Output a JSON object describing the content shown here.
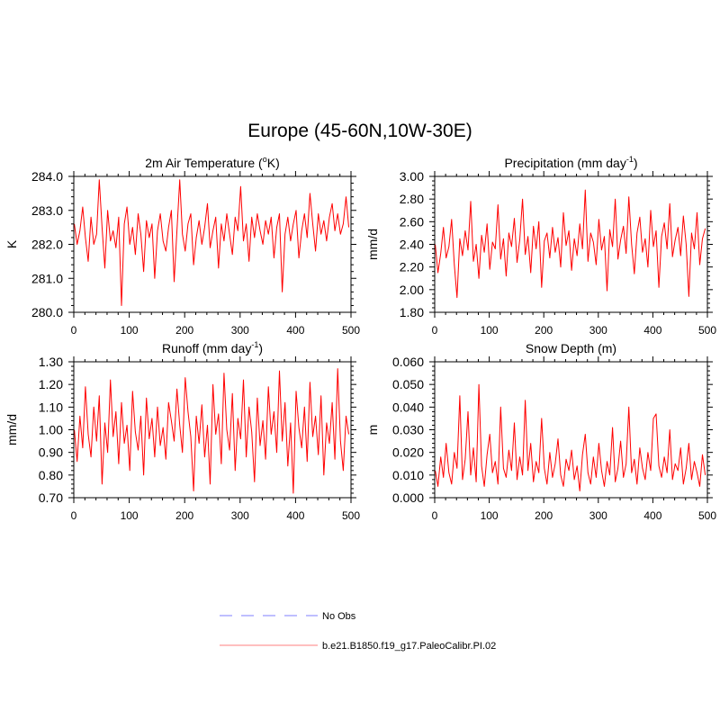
{
  "title": "Europe (45-60N,10W-30E)",
  "colors": {
    "series": "#ff0000",
    "obs": "#9999ff",
    "legend_model": "#ff9999"
  },
  "legend": {
    "items": [
      {
        "label": "No Obs",
        "style": "dashed",
        "color": "#9999ff"
      },
      {
        "label": "b.e21.B1850.f19_g17.PaleoCalibr.PI.02",
        "style": "solid",
        "color": "#ff9999"
      }
    ]
  },
  "chart_data": [
    {
      "type": "line",
      "title_main": "2m Air Temperature (",
      "title_sup": "o",
      "title_tail": "K)",
      "ylabel": "K",
      "xlim": [
        0,
        500
      ],
      "ylim": [
        280.0,
        284.0
      ],
      "x_ticks": [
        "0",
        "100",
        "200",
        "300",
        "400",
        "500"
      ],
      "y_ticks": [
        "280.0",
        "281.0",
        "282.0",
        "283.0",
        "284.0"
      ],
      "series": [
        {
          "x_start": 1,
          "x_step": 5,
          "values": [
            282.6,
            282.0,
            282.4,
            283.1,
            282.2,
            281.5,
            282.8,
            282.0,
            282.3,
            283.9,
            282.5,
            281.3,
            283.0,
            282.1,
            282.4,
            281.9,
            282.8,
            280.2,
            282.6,
            283.1,
            282.0,
            282.5,
            281.7,
            282.9,
            282.3,
            281.2,
            282.7,
            282.2,
            282.6,
            281.0,
            282.4,
            282.9,
            282.1,
            281.8,
            282.5,
            283.0,
            280.9,
            282.4,
            283.9,
            282.3,
            281.8,
            282.6,
            282.9,
            281.4,
            282.2,
            282.7,
            282.0,
            282.5,
            283.2,
            281.9,
            282.4,
            282.8,
            281.3,
            282.6,
            282.1,
            282.9,
            282.3,
            281.7,
            282.8,
            282.4,
            283.7,
            282.1,
            282.6,
            281.5,
            282.8,
            282.2,
            282.9,
            282.4,
            282.0,
            282.7,
            282.3,
            282.8,
            281.6,
            282.5,
            282.9,
            280.6,
            282.3,
            282.8,
            282.1,
            282.6,
            283.0,
            281.6,
            282.4,
            282.9,
            282.2,
            283.5,
            282.6,
            281.8,
            282.9,
            282.3,
            282.7,
            282.1,
            282.8,
            283.2,
            282.4,
            282.9,
            282.3,
            282.6,
            283.4,
            282.5
          ]
        }
      ]
    },
    {
      "type": "line",
      "title_main": "Precipitation (mm day",
      "title_sup": "-1",
      "title_tail": ")",
      "ylabel": "mm/d",
      "xlim": [
        0,
        500
      ],
      "ylim": [
        1.8,
        3.0
      ],
      "x_ticks": [
        "0",
        "100",
        "200",
        "300",
        "400",
        "500"
      ],
      "y_ticks": [
        "1.80",
        "2.00",
        "2.20",
        "2.40",
        "2.60",
        "2.80",
        "3.00"
      ],
      "series": [
        {
          "x_start": 1,
          "x_step": 5,
          "values": [
            2.4,
            2.15,
            2.32,
            2.55,
            2.28,
            2.38,
            2.62,
            2.22,
            1.93,
            2.45,
            2.3,
            2.52,
            2.35,
            2.78,
            2.25,
            2.4,
            2.1,
            2.48,
            2.33,
            2.58,
            2.18,
            2.42,
            2.36,
            2.75,
            2.27,
            2.45,
            2.12,
            2.5,
            2.38,
            2.63,
            2.24,
            2.44,
            2.8,
            2.31,
            2.47,
            2.15,
            2.56,
            2.36,
            2.6,
            2.02,
            2.43,
            2.5,
            2.28,
            2.55,
            2.33,
            2.46,
            2.2,
            2.68,
            2.39,
            2.52,
            2.17,
            2.45,
            2.3,
            2.58,
            2.36,
            2.88,
            2.25,
            2.5,
            2.42,
            2.22,
            2.62,
            2.35,
            2.47,
            1.99,
            2.53,
            2.38,
            2.8,
            2.27,
            2.44,
            2.56,
            2.32,
            2.82,
            2.4,
            2.14,
            2.5,
            2.64,
            2.33,
            2.45,
            2.2,
            2.7,
            2.38,
            2.52,
            2.02,
            2.47,
            2.59,
            2.36,
            2.76,
            2.29,
            2.44,
            2.55,
            2.3,
            2.65,
            2.4,
            1.94,
            2.5,
            2.36,
            2.68,
            2.22,
            2.45,
            2.54
          ]
        }
      ]
    },
    {
      "type": "line",
      "title_main": "Runoff (mm day",
      "title_sup": "-1",
      "title_tail": ")",
      "ylabel": "mm/d",
      "xlim": [
        0,
        500
      ],
      "ylim": [
        0.7,
        1.3
      ],
      "x_ticks": [
        "0",
        "100",
        "200",
        "300",
        "400",
        "500"
      ],
      "y_ticks": [
        "0.70",
        "0.80",
        "0.90",
        "1.00",
        "1.10",
        "1.20",
        "1.30"
      ],
      "series": [
        {
          "x_start": 1,
          "x_step": 5,
          "values": [
            1.0,
            0.86,
            1.06,
            0.92,
            1.19,
            0.98,
            0.88,
            1.1,
            0.95,
            1.15,
            0.76,
            1.03,
            0.9,
            1.22,
            0.97,
            1.08,
            0.85,
            1.12,
            0.94,
            1.02,
            0.82,
            1.17,
            0.99,
            0.91,
            1.06,
            0.8,
            1.14,
            0.96,
            1.05,
            0.88,
            1.1,
            0.93,
            1.01,
            0.87,
            1.12,
            1.04,
            0.95,
            1.18,
            1.02,
            0.9,
            1.23,
            1.08,
            0.97,
            0.73,
            1.06,
            0.94,
            1.11,
            0.88,
            1.02,
            0.76,
            1.2,
            0.98,
            1.07,
            0.85,
            1.25,
            1.0,
            0.91,
            1.16,
            0.82,
            1.05,
            0.96,
            1.22,
            0.88,
            1.1,
            0.99,
            0.77,
            1.14,
            0.93,
            1.04,
            0.87,
            1.19,
            0.98,
            1.08,
            0.9,
            1.26,
            0.95,
            1.12,
            0.84,
            1.03,
            0.72,
            1.17,
            1.01,
            0.92,
            1.1,
            0.86,
            1.21,
            0.97,
            1.06,
            0.89,
            1.15,
            0.8,
            1.03,
            0.94,
            1.12,
            0.87,
            1.27,
            0.95,
            0.82,
            1.06,
            0.98
          ]
        }
      ]
    },
    {
      "type": "line",
      "title_main": "Snow Depth (m)",
      "title_sup": "",
      "title_tail": "",
      "ylabel": "m",
      "xlim": [
        0,
        500
      ],
      "ylim": [
        0.0,
        0.06
      ],
      "x_ticks": [
        "0",
        "100",
        "200",
        "300",
        "400",
        "500"
      ],
      "y_ticks": [
        "0.000",
        "0.010",
        "0.020",
        "0.030",
        "0.040",
        "0.050",
        "0.060"
      ],
      "series": [
        {
          "x_start": 1,
          "x_step": 5,
          "values": [
            0.012,
            0.005,
            0.018,
            0.009,
            0.024,
            0.011,
            0.006,
            0.02,
            0.013,
            0.045,
            0.008,
            0.017,
            0.038,
            0.01,
            0.022,
            0.007,
            0.05,
            0.014,
            0.005,
            0.019,
            0.028,
            0.011,
            0.016,
            0.006,
            0.04,
            0.013,
            0.009,
            0.021,
            0.012,
            0.033,
            0.008,
            0.018,
            0.01,
            0.043,
            0.012,
            0.024,
            0.007,
            0.016,
            0.011,
            0.035,
            0.013,
            0.006,
            0.02,
            0.009,
            0.015,
            0.026,
            0.01,
            0.005,
            0.017,
            0.012,
            0.021,
            0.008,
            0.014,
            0.003,
            0.019,
            0.028,
            0.011,
            0.006,
            0.018,
            0.009,
            0.024,
            0.012,
            0.005,
            0.016,
            0.01,
            0.031,
            0.007,
            0.013,
            0.025,
            0.009,
            0.015,
            0.04,
            0.011,
            0.017,
            0.006,
            0.022,
            0.013,
            0.008,
            0.02,
            0.012,
            0.035,
            0.037,
            0.014,
            0.009,
            0.018,
            0.011,
            0.03,
            0.008,
            0.015,
            0.012,
            0.022,
            0.006,
            0.013,
            0.024,
            0.008,
            0.016,
            0.011,
            0.005,
            0.019,
            0.01
          ]
        }
      ]
    }
  ]
}
